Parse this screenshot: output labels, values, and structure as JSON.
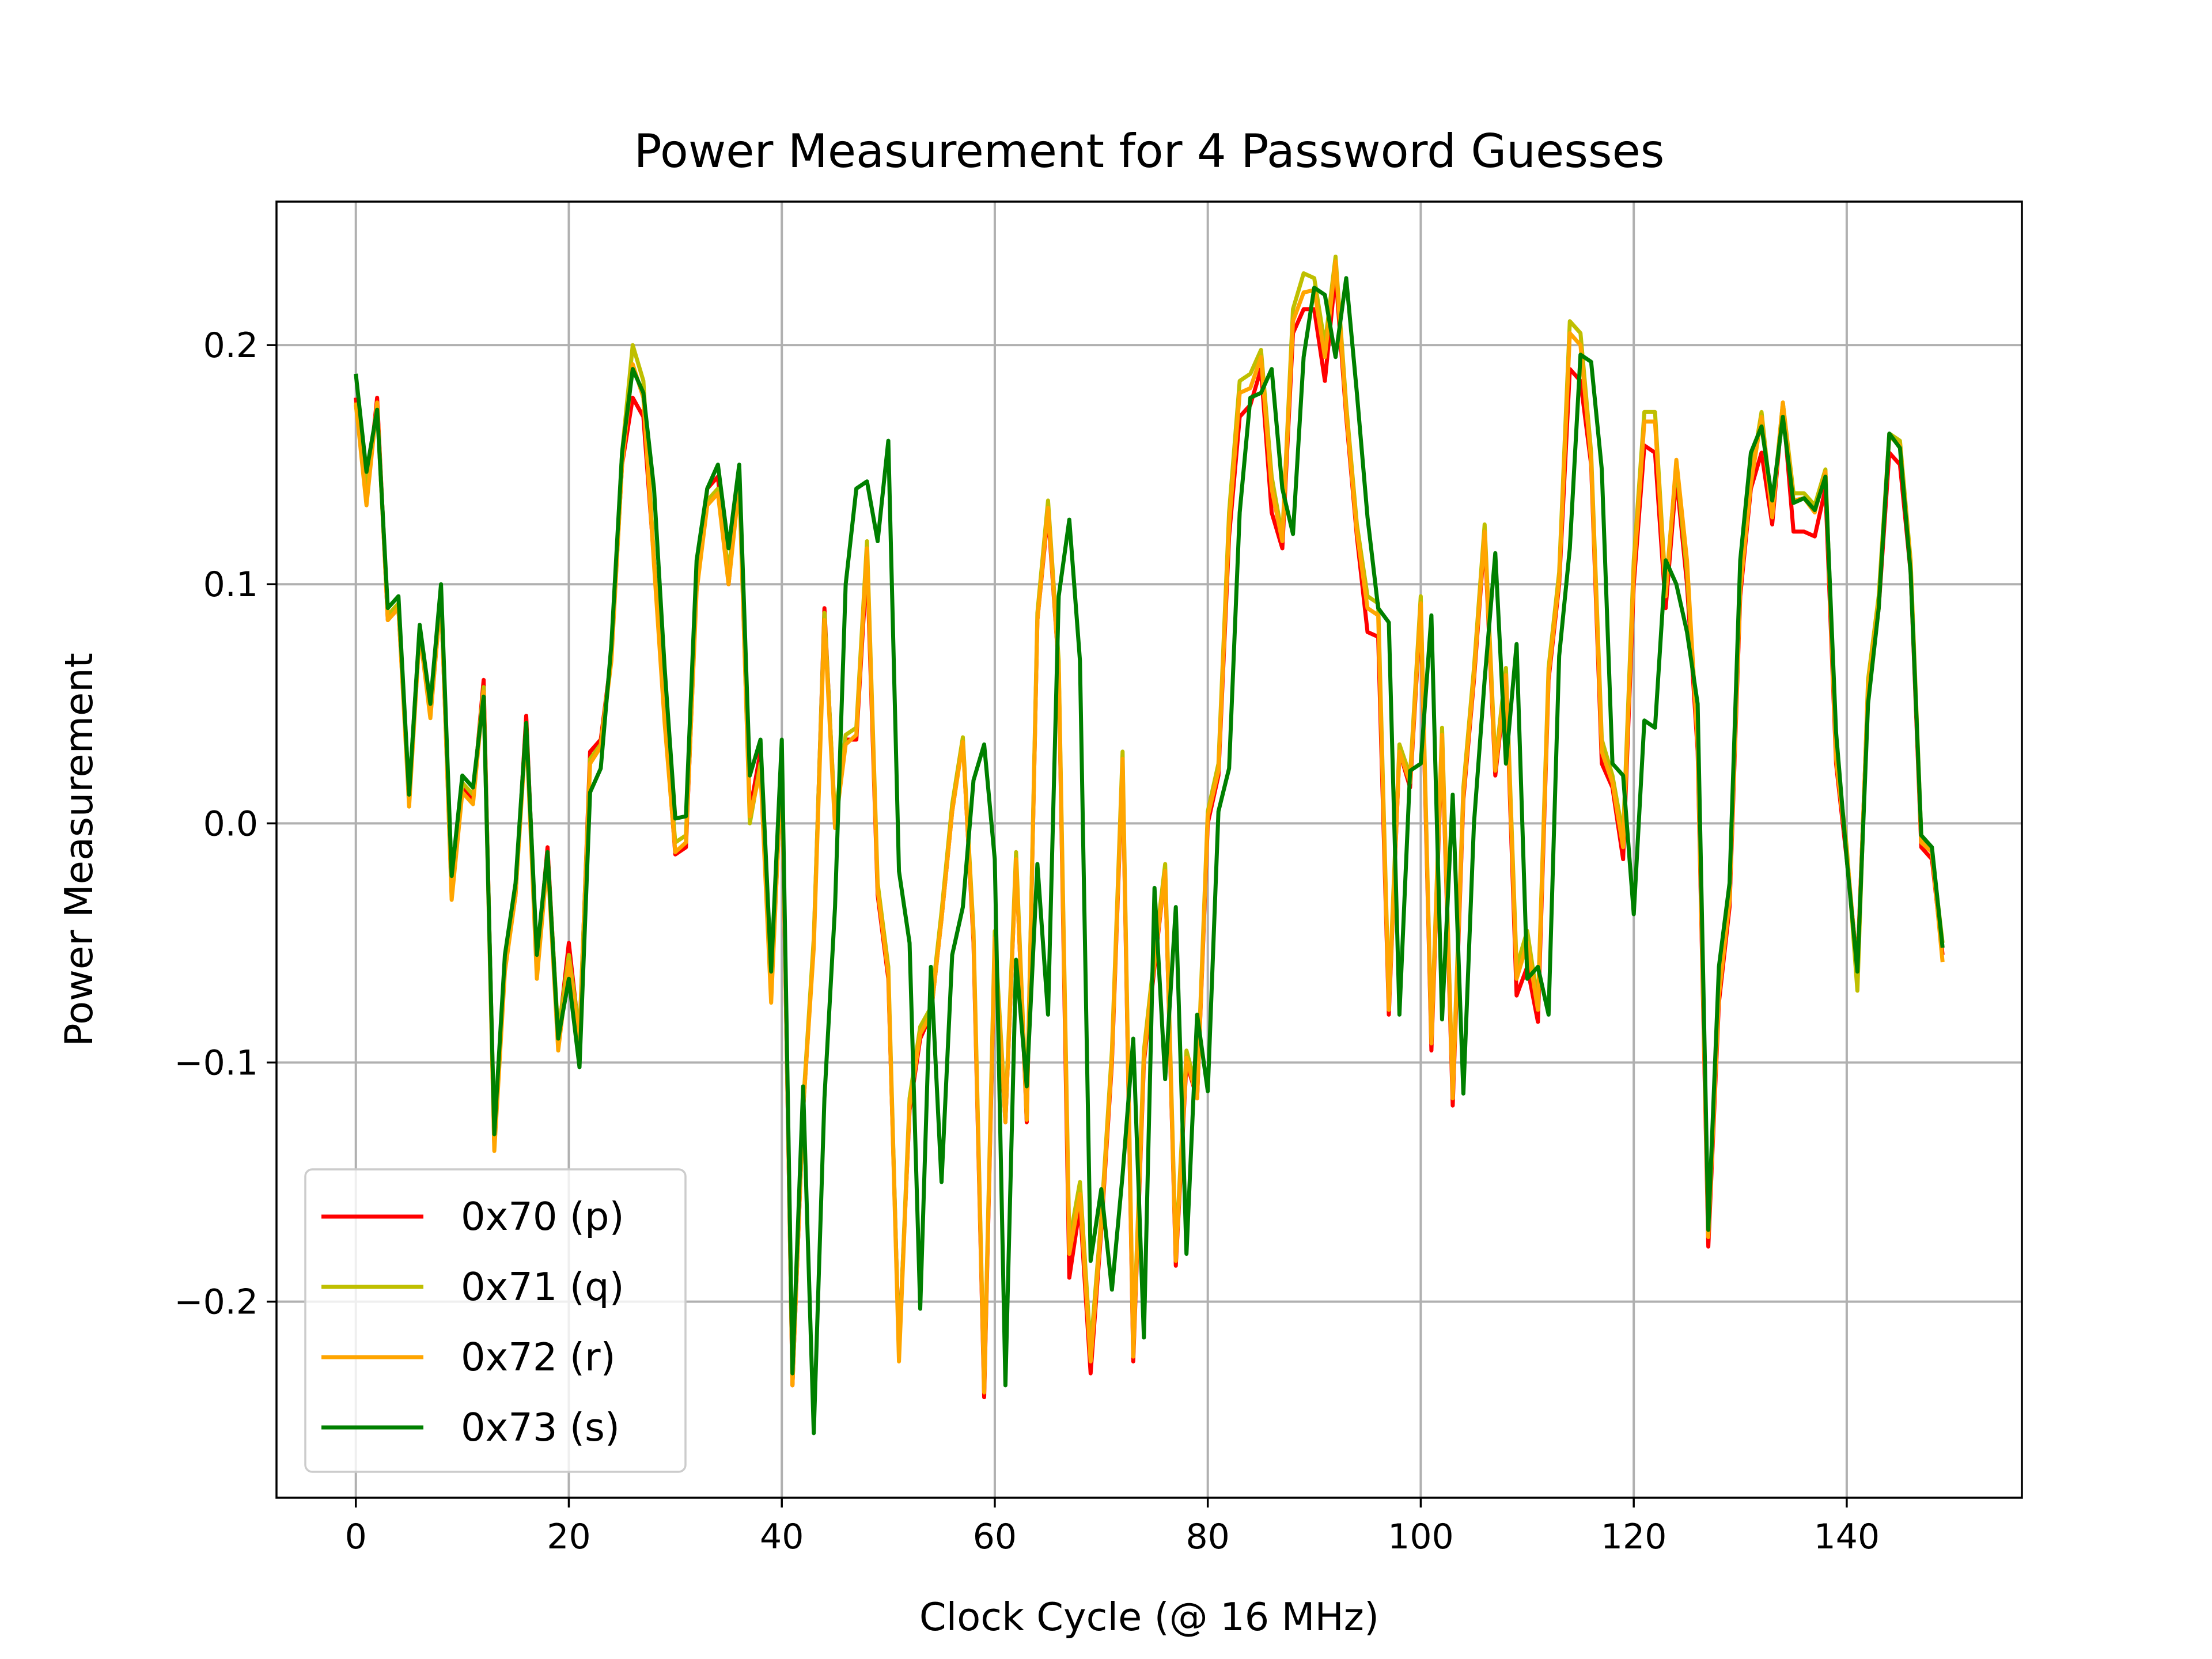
{
  "chart_data": {
    "type": "line",
    "title": "Power Measurement for 4 Password Guesses",
    "xlabel": "Clock Cycle (@ 16 MHz)",
    "ylabel": "Power Measurement",
    "xlim": [
      -7.45,
      156.45
    ],
    "ylim": [
      -0.282,
      0.26
    ],
    "xticks": [
      0,
      20,
      40,
      60,
      80,
      100,
      120,
      140
    ],
    "xtick_labels": [
      "0",
      "20",
      "40",
      "60",
      "80",
      "100",
      "120",
      "140"
    ],
    "yticks": [
      -0.2,
      -0.1,
      0.0,
      0.1,
      0.2
    ],
    "ytick_labels": [
      "−0.2",
      "−0.1",
      "0.0",
      "0.1",
      "0.2"
    ],
    "grid": true,
    "legend_position": "lower-left",
    "x_start": 0,
    "series": [
      {
        "name": "0x70 (p)",
        "color": "#ff0000",
        "values": [
          0.178,
          0.135,
          0.178,
          0.085,
          0.09,
          0.01,
          0.08,
          0.045,
          0.095,
          -0.03,
          0.015,
          0.01,
          0.06,
          -0.135,
          -0.06,
          -0.03,
          0.045,
          -0.06,
          -0.01,
          -0.09,
          -0.05,
          -0.09,
          0.03,
          0.035,
          0.07,
          0.15,
          0.178,
          0.17,
          0.11,
          0.045,
          -0.013,
          -0.01,
          0.1,
          0.14,
          0.145,
          0.1,
          0.145,
          0.005,
          0.03,
          -0.072,
          0.025,
          -0.235,
          -0.12,
          -0.05,
          0.09,
          0.0,
          0.035,
          0.035,
          0.11,
          -0.03,
          -0.065,
          -0.22,
          -0.12,
          -0.09,
          -0.08,
          -0.04,
          0.005,
          0.035,
          -0.05,
          -0.24,
          -0.05,
          -0.125,
          -0.015,
          -0.125,
          0.085,
          0.13,
          0.065,
          -0.19,
          -0.16,
          -0.23,
          -0.17,
          -0.1,
          0.025,
          -0.225,
          -0.1,
          -0.06,
          -0.02,
          -0.185,
          -0.1,
          -0.115,
          0.0,
          0.02,
          0.12,
          0.17,
          0.175,
          0.19,
          0.13,
          0.115,
          0.205,
          0.215,
          0.215,
          0.185,
          0.23,
          0.17,
          0.12,
          0.08,
          0.078,
          -0.08,
          0.03,
          0.015,
          0.09,
          -0.095,
          0.035,
          -0.118,
          0.01,
          0.06,
          0.12,
          0.02,
          0.06,
          -0.072,
          -0.06,
          -0.083,
          0.06,
          0.1,
          0.19,
          0.185,
          0.15,
          0.025,
          0.015,
          -0.015,
          0.1,
          0.158,
          0.155,
          0.09,
          0.145,
          0.1,
          0.03,
          -0.177,
          -0.075,
          -0.035,
          0.095,
          0.14,
          0.155,
          0.125,
          0.175,
          0.122,
          0.122,
          0.12,
          0.14,
          0.025,
          -0.015,
          -0.06,
          0.055,
          0.09,
          0.155,
          0.15,
          0.105,
          -0.01,
          -0.015,
          -0.055
        ]
      },
      {
        "name": "0x71 (q)",
        "color": "#bfbf00",
        "values": [
          0.175,
          0.14,
          0.175,
          0.087,
          0.092,
          0.012,
          0.082,
          0.048,
          0.097,
          -0.028,
          0.017,
          0.012,
          0.057,
          -0.132,
          -0.058,
          -0.028,
          0.042,
          -0.058,
          -0.012,
          -0.088,
          -0.055,
          -0.088,
          0.027,
          0.033,
          0.07,
          0.155,
          0.2,
          0.185,
          0.11,
          0.045,
          -0.008,
          -0.005,
          0.1,
          0.135,
          0.14,
          0.105,
          0.145,
          0.0,
          0.025,
          -0.068,
          0.028,
          -0.232,
          -0.118,
          -0.048,
          0.088,
          0.002,
          0.037,
          0.04,
          0.118,
          -0.025,
          -0.06,
          -0.222,
          -0.115,
          -0.085,
          -0.077,
          -0.037,
          0.008,
          0.036,
          -0.045,
          -0.235,
          -0.045,
          -0.122,
          -0.012,
          -0.122,
          0.088,
          0.135,
          0.068,
          -0.175,
          -0.15,
          -0.22,
          -0.165,
          -0.095,
          0.03,
          -0.22,
          -0.095,
          -0.055,
          -0.017,
          -0.18,
          -0.095,
          -0.112,
          0.005,
          0.025,
          0.13,
          0.185,
          0.188,
          0.198,
          0.145,
          0.12,
          0.215,
          0.23,
          0.228,
          0.2,
          0.237,
          0.175,
          0.125,
          0.095,
          0.092,
          -0.075,
          0.033,
          0.02,
          0.095,
          -0.09,
          0.04,
          -0.113,
          0.015,
          0.065,
          0.125,
          0.025,
          0.065,
          -0.06,
          -0.045,
          -0.075,
          0.065,
          0.105,
          0.21,
          0.205,
          0.155,
          0.035,
          0.02,
          -0.005,
          0.11,
          0.172,
          0.172,
          0.098,
          0.15,
          0.105,
          0.035,
          -0.17,
          -0.07,
          -0.03,
          0.1,
          0.145,
          0.172,
          0.13,
          0.176,
          0.138,
          0.138,
          0.133,
          0.148,
          0.03,
          -0.01,
          -0.07,
          0.06,
          0.095,
          0.163,
          0.16,
          0.11,
          -0.005,
          -0.012,
          -0.05
        ]
      },
      {
        "name": "0x72 (r)",
        "color": "#ffa500",
        "values": [
          0.176,
          0.133,
          0.176,
          0.085,
          0.09,
          0.007,
          0.08,
          0.044,
          0.095,
          -0.032,
          0.013,
          0.008,
          0.055,
          -0.137,
          -0.062,
          -0.03,
          0.04,
          -0.065,
          -0.015,
          -0.095,
          -0.058,
          -0.092,
          0.025,
          0.032,
          0.068,
          0.15,
          0.192,
          0.178,
          0.108,
          0.042,
          -0.012,
          -0.008,
          0.097,
          0.133,
          0.138,
          0.1,
          0.142,
          0.003,
          0.022,
          -0.075,
          0.026,
          -0.235,
          -0.12,
          -0.052,
          0.085,
          -0.002,
          0.033,
          0.037,
          0.115,
          -0.028,
          -0.063,
          -0.225,
          -0.118,
          -0.088,
          -0.08,
          -0.04,
          0.005,
          0.034,
          -0.048,
          -0.238,
          -0.048,
          -0.125,
          -0.015,
          -0.124,
          0.085,
          0.132,
          0.065,
          -0.18,
          -0.155,
          -0.225,
          -0.168,
          -0.098,
          0.027,
          -0.223,
          -0.098,
          -0.058,
          -0.02,
          -0.183,
          -0.098,
          -0.115,
          0.003,
          0.022,
          0.125,
          0.18,
          0.182,
          0.195,
          0.14,
          0.118,
          0.21,
          0.222,
          0.223,
          0.195,
          0.235,
          0.172,
          0.122,
          0.09,
          0.087,
          -0.078,
          0.03,
          0.017,
          0.092,
          -0.092,
          0.037,
          -0.115,
          0.012,
          0.062,
          0.122,
          0.022,
          0.062,
          -0.065,
          -0.05,
          -0.078,
          0.062,
          0.102,
          0.205,
          0.2,
          0.152,
          0.03,
          0.017,
          -0.01,
          0.105,
          0.168,
          0.168,
          0.095,
          0.152,
          0.11,
          0.033,
          -0.173,
          -0.072,
          -0.032,
          0.098,
          0.142,
          0.17,
          0.128,
          0.176,
          0.135,
          0.136,
          0.13,
          0.147,
          0.027,
          -0.012,
          -0.062,
          0.057,
          0.092,
          0.162,
          0.158,
          0.108,
          -0.008,
          -0.012,
          -0.058
        ]
      },
      {
        "name": "0x73 (s)",
        "color": "#008000",
        "values": [
          0.188,
          0.147,
          0.173,
          0.09,
          0.095,
          0.012,
          0.083,
          0.05,
          0.1,
          -0.022,
          0.02,
          0.015,
          0.053,
          -0.13,
          -0.055,
          -0.025,
          0.042,
          -0.055,
          -0.012,
          -0.09,
          -0.065,
          -0.102,
          0.013,
          0.023,
          0.075,
          0.155,
          0.19,
          0.18,
          0.14,
          0.065,
          0.002,
          0.003,
          0.11,
          0.14,
          0.15,
          0.115,
          0.15,
          0.02,
          0.035,
          -0.062,
          0.035,
          -0.23,
          -0.11,
          -0.255,
          -0.115,
          -0.035,
          0.1,
          0.14,
          0.143,
          0.118,
          0.16,
          -0.02,
          -0.05,
          -0.203,
          -0.06,
          -0.15,
          -0.055,
          -0.035,
          0.018,
          0.033,
          -0.015,
          -0.235,
          -0.057,
          -0.11,
          -0.017,
          -0.08,
          0.095,
          0.127,
          0.068,
          -0.183,
          -0.153,
          -0.195,
          -0.147,
          -0.09,
          -0.215,
          -0.027,
          -0.107,
          -0.035,
          -0.18,
          -0.08,
          -0.112,
          0.005,
          0.023,
          0.13,
          0.178,
          0.18,
          0.19,
          0.14,
          0.121,
          0.195,
          0.224,
          0.221,
          0.195,
          0.228,
          0.18,
          0.128,
          0.09,
          0.084,
          -0.08,
          0.022,
          0.025,
          0.087,
          -0.082,
          0.012,
          -0.113,
          0.0,
          0.06,
          0.113,
          0.025,
          0.075,
          -0.065,
          -0.06,
          -0.08,
          0.07,
          0.115,
          0.196,
          0.193,
          0.148,
          0.025,
          0.02,
          -0.038,
          0.043,
          0.04,
          0.11,
          0.1,
          0.08,
          0.05,
          -0.17,
          -0.06,
          -0.025,
          0.11,
          0.155,
          0.166,
          0.135,
          0.17,
          0.134,
          0.136,
          0.131,
          0.145,
          0.038,
          -0.015,
          -0.062,
          0.05,
          0.09,
          0.163,
          0.157,
          0.105,
          -0.005,
          -0.01,
          -0.052
        ]
      }
    ]
  }
}
